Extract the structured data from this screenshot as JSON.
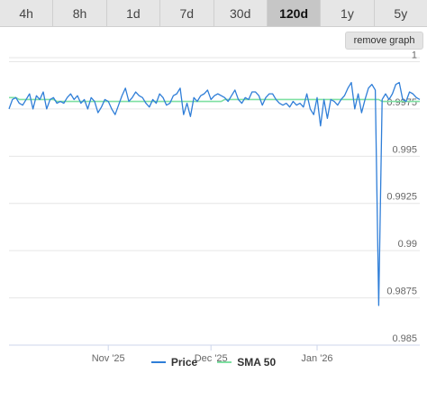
{
  "tabs": [
    {
      "label": "4h",
      "active": false
    },
    {
      "label": "8h",
      "active": false
    },
    {
      "label": "1d",
      "active": false
    },
    {
      "label": "7d",
      "active": false
    },
    {
      "label": "30d",
      "active": false
    },
    {
      "label": "120d",
      "active": true
    },
    {
      "label": "1y",
      "active": false
    },
    {
      "label": "5y",
      "active": false
    }
  ],
  "remove_graph_label": "remove graph",
  "colors": {
    "price": "#2f7ed8",
    "sma": "#7ee0a2",
    "grid": "#e6e6e6",
    "text": "#666666"
  },
  "chart_data": {
    "type": "line",
    "title": "",
    "xlabel": "",
    "ylabel": "",
    "ylim": [
      0.985,
      1.0005
    ],
    "yticks": [
      1,
      0.9975,
      0.995,
      0.9925,
      0.99,
      0.9875,
      0.985
    ],
    "ytick_labels": [
      "1",
      "0.9975",
      "0.995",
      "0.9925",
      "0.99",
      "0.9875",
      "0.985"
    ],
    "xlim": [
      0,
      120
    ],
    "xticks": [
      29,
      59,
      90
    ],
    "xtick_labels": [
      "Nov '25",
      "Dec '25",
      "Jan '26"
    ],
    "grid": true,
    "legend_position": "bottom",
    "series": [
      {
        "name": "Price",
        "values": [
          0.9975,
          0.998,
          0.9981,
          0.9978,
          0.9977,
          0.998,
          0.9983,
          0.9975,
          0.9982,
          0.998,
          0.9984,
          0.9975,
          0.998,
          0.9981,
          0.9978,
          0.9979,
          0.9978,
          0.9981,
          0.9983,
          0.998,
          0.9982,
          0.9978,
          0.998,
          0.9975,
          0.9981,
          0.9979,
          0.9973,
          0.9976,
          0.998,
          0.9979,
          0.9975,
          0.9972,
          0.9977,
          0.9982,
          0.9986,
          0.9979,
          0.9981,
          0.9984,
          0.9982,
          0.9981,
          0.9978,
          0.9976,
          0.998,
          0.9978,
          0.9983,
          0.9981,
          0.9977,
          0.9978,
          0.9982,
          0.9983,
          0.9986,
          0.9972,
          0.9978,
          0.9971,
          0.9981,
          0.9979,
          0.9982,
          0.9983,
          0.9985,
          0.998,
          0.9982,
          0.9983,
          0.9982,
          0.9981,
          0.9979,
          0.9982,
          0.9985,
          0.998,
          0.9978,
          0.9981,
          0.998,
          0.9984,
          0.9984,
          0.9982,
          0.9977,
          0.9981,
          0.9983,
          0.9983,
          0.998,
          0.9978,
          0.9977,
          0.9978,
          0.9976,
          0.9979,
          0.9977,
          0.9978,
          0.9976,
          0.9983,
          0.9975,
          0.9972,
          0.9981,
          0.9966,
          0.998,
          0.997,
          0.998,
          0.9979,
          0.9977,
          0.998,
          0.9982,
          0.9986,
          0.9989,
          0.9975,
          0.9983,
          0.9973,
          0.998,
          0.9986,
          0.9988,
          0.9985,
          0.9871,
          0.998,
          0.9983,
          0.998,
          0.9983,
          0.9988,
          0.9989,
          0.998,
          0.9979,
          0.9984,
          0.9983,
          0.9981,
          0.998
        ]
      },
      {
        "name": "SMA 50",
        "values": [
          0.9981,
          0.9981,
          0.9981,
          0.998,
          0.998,
          0.998,
          0.998,
          0.998,
          0.998,
          0.998,
          0.998,
          0.998,
          0.998,
          0.998,
          0.9979,
          0.9979,
          0.9979,
          0.9979,
          0.9979,
          0.9979,
          0.9979,
          0.9979,
          0.9979,
          0.9979,
          0.9979,
          0.9979,
          0.9979,
          0.9979,
          0.9979,
          0.9979,
          0.9979,
          0.9979,
          0.9979,
          0.9979,
          0.9979,
          0.9979,
          0.9979,
          0.9979,
          0.9979,
          0.9979,
          0.9979,
          0.9979,
          0.9979,
          0.9979,
          0.9979,
          0.9979,
          0.9979,
          0.9979,
          0.9979,
          0.9979,
          0.9979,
          0.9979,
          0.9979,
          0.9979,
          0.9979,
          0.9979,
          0.9979,
          0.9979,
          0.9979,
          0.9979,
          0.9979,
          0.9979,
          0.9979,
          0.998,
          0.998,
          0.998,
          0.998,
          0.998,
          0.998,
          0.998,
          0.998,
          0.998,
          0.998,
          0.998,
          0.998,
          0.998,
          0.998,
          0.998,
          0.998,
          0.998,
          0.998,
          0.998,
          0.998,
          0.998,
          0.998,
          0.998,
          0.998,
          0.998,
          0.998,
          0.998,
          0.998,
          0.998,
          0.998,
          0.998,
          0.998,
          0.998,
          0.998,
          0.998,
          0.998,
          0.998,
          0.998,
          0.998,
          0.998,
          0.998,
          0.998,
          0.998,
          0.998,
          0.998,
          0.998,
          0.9979,
          0.9979,
          0.9979,
          0.9979,
          0.9979,
          0.9979,
          0.9979,
          0.9979,
          0.9979,
          0.9979,
          0.9979,
          0.9979
        ]
      }
    ]
  }
}
